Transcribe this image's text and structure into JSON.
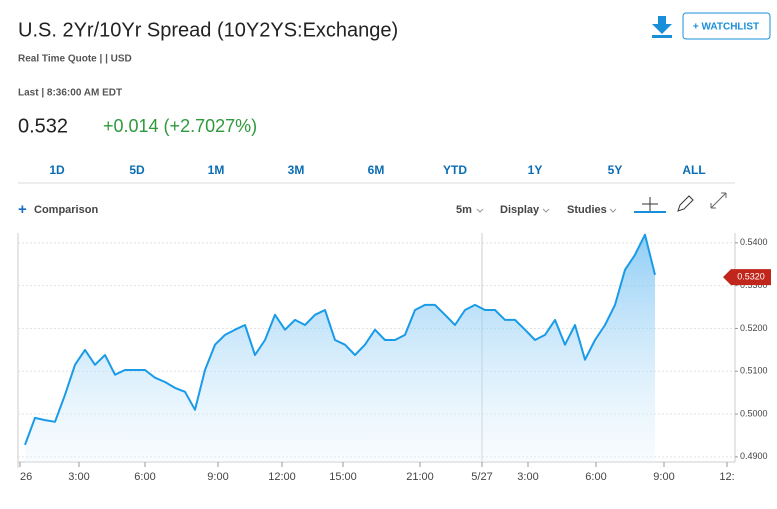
{
  "header": {
    "title": "U.S. 2Yr/10Yr Spread (10Y2YS:Exchange)",
    "subtitle": "Real Time Quote | | USD",
    "watchlist": "+ WATCHLIST"
  },
  "quote": {
    "time": "Last | 8:36:00 AM EDT",
    "price": "0.532",
    "change": "+0.014 (+2.7027%)"
  },
  "ranges": [
    "1D",
    "5D",
    "1M",
    "3M",
    "6M",
    "YTD",
    "1Y",
    "5Y",
    "ALL"
  ],
  "toolbar": {
    "comparison": "Comparison",
    "interval": "5m",
    "display": "Display",
    "studies": "Studies"
  },
  "chart_data": {
    "type": "line",
    "color": "#1a9be8",
    "grid": true,
    "values": [
      0.4928,
      0.4991,
      0.4986,
      0.4982,
      0.5045,
      0.5115,
      0.515,
      0.5115,
      0.5138,
      0.5092,
      0.5103,
      0.5103,
      0.5103,
      0.5085,
      0.5075,
      0.5061,
      0.5052,
      0.501,
      0.5103,
      0.5162,
      0.5185,
      0.5197,
      0.5208,
      0.5138,
      0.5173,
      0.5232,
      0.5197,
      0.522,
      0.5208,
      0.5232,
      0.5243,
      0.5173,
      0.5162,
      0.5138,
      0.5162,
      0.5197,
      0.5173,
      0.5173,
      0.5185,
      0.5243,
      0.5255,
      0.5255,
      0.5232,
      0.5208,
      0.5243,
      0.5255,
      0.5243,
      0.5243,
      0.522,
      0.522,
      0.5197,
      0.5173,
      0.5185,
      0.522,
      0.5162,
      0.5208,
      0.5127,
      0.5173,
      0.5208,
      0.5255,
      0.5337,
      0.5372,
      0.5419,
      0.5325
    ],
    "xlim": [
      -0.7,
      71
    ],
    "xticks": [
      {
        "value": -0.5,
        "label": "26"
      },
      {
        "value": 5.4,
        "label": "3:00"
      },
      {
        "value": 12,
        "label": "6:00"
      },
      {
        "value": 19.3,
        "label": "9:00"
      },
      {
        "value": 25.7,
        "label": "12:00"
      },
      {
        "value": 31.8,
        "label": "15:00"
      },
      {
        "value": 39.5,
        "label": "21:00"
      },
      {
        "value": 45.7,
        "label": "5/27"
      },
      {
        "value": 50.3,
        "label": "3:00"
      },
      {
        "value": 57.1,
        "label": "6:00"
      },
      {
        "value": 63.9,
        "label": "9:00"
      },
      {
        "value": 70.2,
        "label": "12:"
      }
    ],
    "ylim": [
      0.4888,
      0.5423
    ],
    "yticks": [
      {
        "value": 0.49,
        "label": "0.4900"
      },
      {
        "value": 0.5,
        "label": "0.5000"
      },
      {
        "value": 0.51,
        "label": "0.5100"
      },
      {
        "value": 0.52,
        "label": "0.5200"
      },
      {
        "value": 0.53,
        "label": "0.5300"
      },
      {
        "value": 0.54,
        "label": "0.5400"
      }
    ],
    "annotations": [
      {
        "value": 0.532,
        "label": "0.5320"
      }
    ]
  }
}
